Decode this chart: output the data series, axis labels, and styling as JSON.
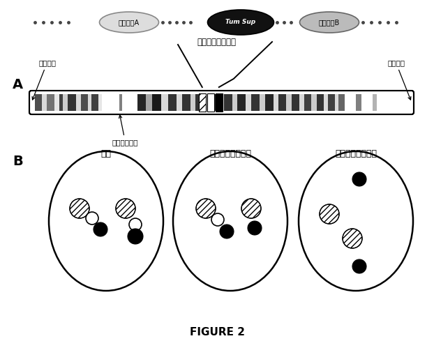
{
  "fig_width": 6.22,
  "fig_height": 5.12,
  "bg_color": "#ffffff",
  "title": "FIGURE 2",
  "section_A_label": "A",
  "section_B_label": "B",
  "telomere_left": "テロメア",
  "telomere_right": "テロメア",
  "centromere_label": "セントロメア",
  "probe_A_label": "プローブA",
  "probe_B_label": "プローブB",
  "deletion_label": "欠失に供する領域",
  "normal_label": "正常",
  "hemi_label": "ヘミ接合性の損失",
  "homo_label": "ホモ接合性の損失",
  "tum_sup_label": "Tum Sup"
}
